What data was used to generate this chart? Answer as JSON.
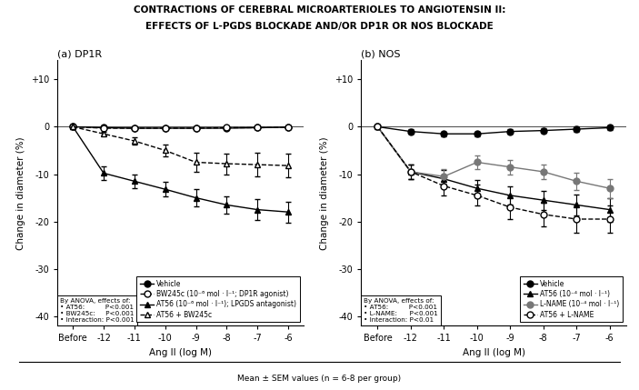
{
  "title_line1": "CONTRACTIONS OF CEREBRAL MICROARTERIOLES TO ANGIOTENSIN II:",
  "title_line2": "EFFECTS OF L-PGDS BLOCKADE AND/OR DP1R OR NOS BLOCKADE",
  "bottom_note": "Mean ± SEM values (n = 6-8 per group)",
  "x_labels": [
    "Before",
    "-12",
    "-11",
    "-10",
    "-9",
    "-8",
    "-7",
    "-6"
  ],
  "x_positions": [
    0,
    1,
    2,
    3,
    4,
    5,
    6,
    7
  ],
  "xlabel": "Ang II (log M)",
  "ylabel": "Change in diameter (%)",
  "ylim": [
    -42,
    14
  ],
  "yticks": [
    -40,
    -30,
    -20,
    -10,
    0,
    10
  ],
  "ytick_labels": [
    "-40",
    "-30",
    "-20",
    "-10",
    "0",
    "+10"
  ],
  "panel_a": {
    "label": "(a) DP1R",
    "vehicle": {
      "y": [
        0,
        -0.2,
        -0.3,
        -0.3,
        -0.3,
        -0.3,
        -0.2,
        -0.1
      ],
      "yerr": [
        0,
        0.2,
        0.2,
        0.2,
        0.2,
        0.2,
        0.2,
        0.2
      ],
      "color": "#000000",
      "marker": "o",
      "fillstyle": "full",
      "linestyle": "-"
    },
    "bw245c": {
      "y": [
        0,
        -0.3,
        -0.3,
        -0.3,
        -0.3,
        -0.2,
        -0.2,
        -0.1
      ],
      "yerr": [
        0,
        0.2,
        0.2,
        0.2,
        0.2,
        0.2,
        0.2,
        0.2
      ],
      "color": "#000000",
      "marker": "o",
      "fillstyle": "none",
      "linestyle": "--"
    },
    "at56": {
      "y": [
        0,
        -9.8,
        -11.5,
        -13.2,
        -15.0,
        -16.5,
        -17.5,
        -18.0
      ],
      "yerr": [
        0,
        1.5,
        1.5,
        1.5,
        1.8,
        1.8,
        2.2,
        2.2
      ],
      "color": "#000000",
      "marker": "^",
      "fillstyle": "full",
      "linestyle": "-"
    },
    "at56_bw245c": {
      "y": [
        0,
        -1.5,
        -3.0,
        -5.0,
        -7.5,
        -7.8,
        -8.0,
        -8.2
      ],
      "yerr": [
        0,
        0.4,
        0.8,
        1.2,
        2.0,
        2.2,
        2.5,
        2.5
      ],
      "color": "#000000",
      "marker": "^",
      "fillstyle": "none",
      "linestyle": "--"
    },
    "anova_text": "By ANOVA, effects of:\n• AT56:          P<0.001\n• BW245c:     P<0.001\n• Interaction: P<0.001",
    "leg_labels": [
      "Vehicle",
      "BW245c (10⁻⁶ mol · l⁻¹; DP1R agonist)",
      "AT56 (10⁻⁶ mol · l⁻¹); LPGDS antagonist)",
      "AT56 + BW245c"
    ]
  },
  "panel_b": {
    "label": "(b) NOS",
    "vehicle": {
      "y": [
        0,
        -1.0,
        -1.5,
        -1.5,
        -1.0,
        -0.8,
        -0.5,
        -0.2
      ],
      "yerr": [
        0,
        0.5,
        0.5,
        0.5,
        0.5,
        0.5,
        0.5,
        0.5
      ],
      "color": "#000000",
      "marker": "o",
      "fillstyle": "full",
      "linestyle": "-"
    },
    "at56": {
      "y": [
        0,
        -9.5,
        -11.0,
        -13.0,
        -14.5,
        -15.5,
        -16.5,
        -17.5
      ],
      "yerr": [
        0,
        1.5,
        1.8,
        1.8,
        2.0,
        2.0,
        2.2,
        2.5
      ],
      "color": "#000000",
      "marker": "^",
      "fillstyle": "full",
      "linestyle": "-"
    },
    "lname": {
      "y": [
        0,
        -9.5,
        -10.5,
        -7.5,
        -8.5,
        -9.5,
        -11.5,
        -13.0
      ],
      "yerr": [
        0,
        1.5,
        1.5,
        1.5,
        1.5,
        1.5,
        1.8,
        2.0
      ],
      "color": "#777777",
      "marker": "o",
      "fillstyle": "full",
      "linestyle": "-"
    },
    "at56_lname": {
      "y": [
        0,
        -9.5,
        -12.5,
        -14.5,
        -17.0,
        -18.5,
        -19.5,
        -19.5
      ],
      "yerr": [
        0,
        1.5,
        2.0,
        2.2,
        2.5,
        2.5,
        2.8,
        2.8
      ],
      "color": "#000000",
      "marker": "o",
      "fillstyle": "none",
      "linestyle": "--"
    },
    "anova_text": "By ANOVA, effects of:\n• AT56:          P<0.001\n• L-NAME:      P<0.001\n• Interaction: P<0.01",
    "leg_labels": [
      "Vehicle",
      "AT56 (10⁻⁴ mol · l⁻¹)",
      "L-NAME (10⁻⁴ mol · l⁻¹)",
      "AT56 + L-NAME"
    ]
  }
}
